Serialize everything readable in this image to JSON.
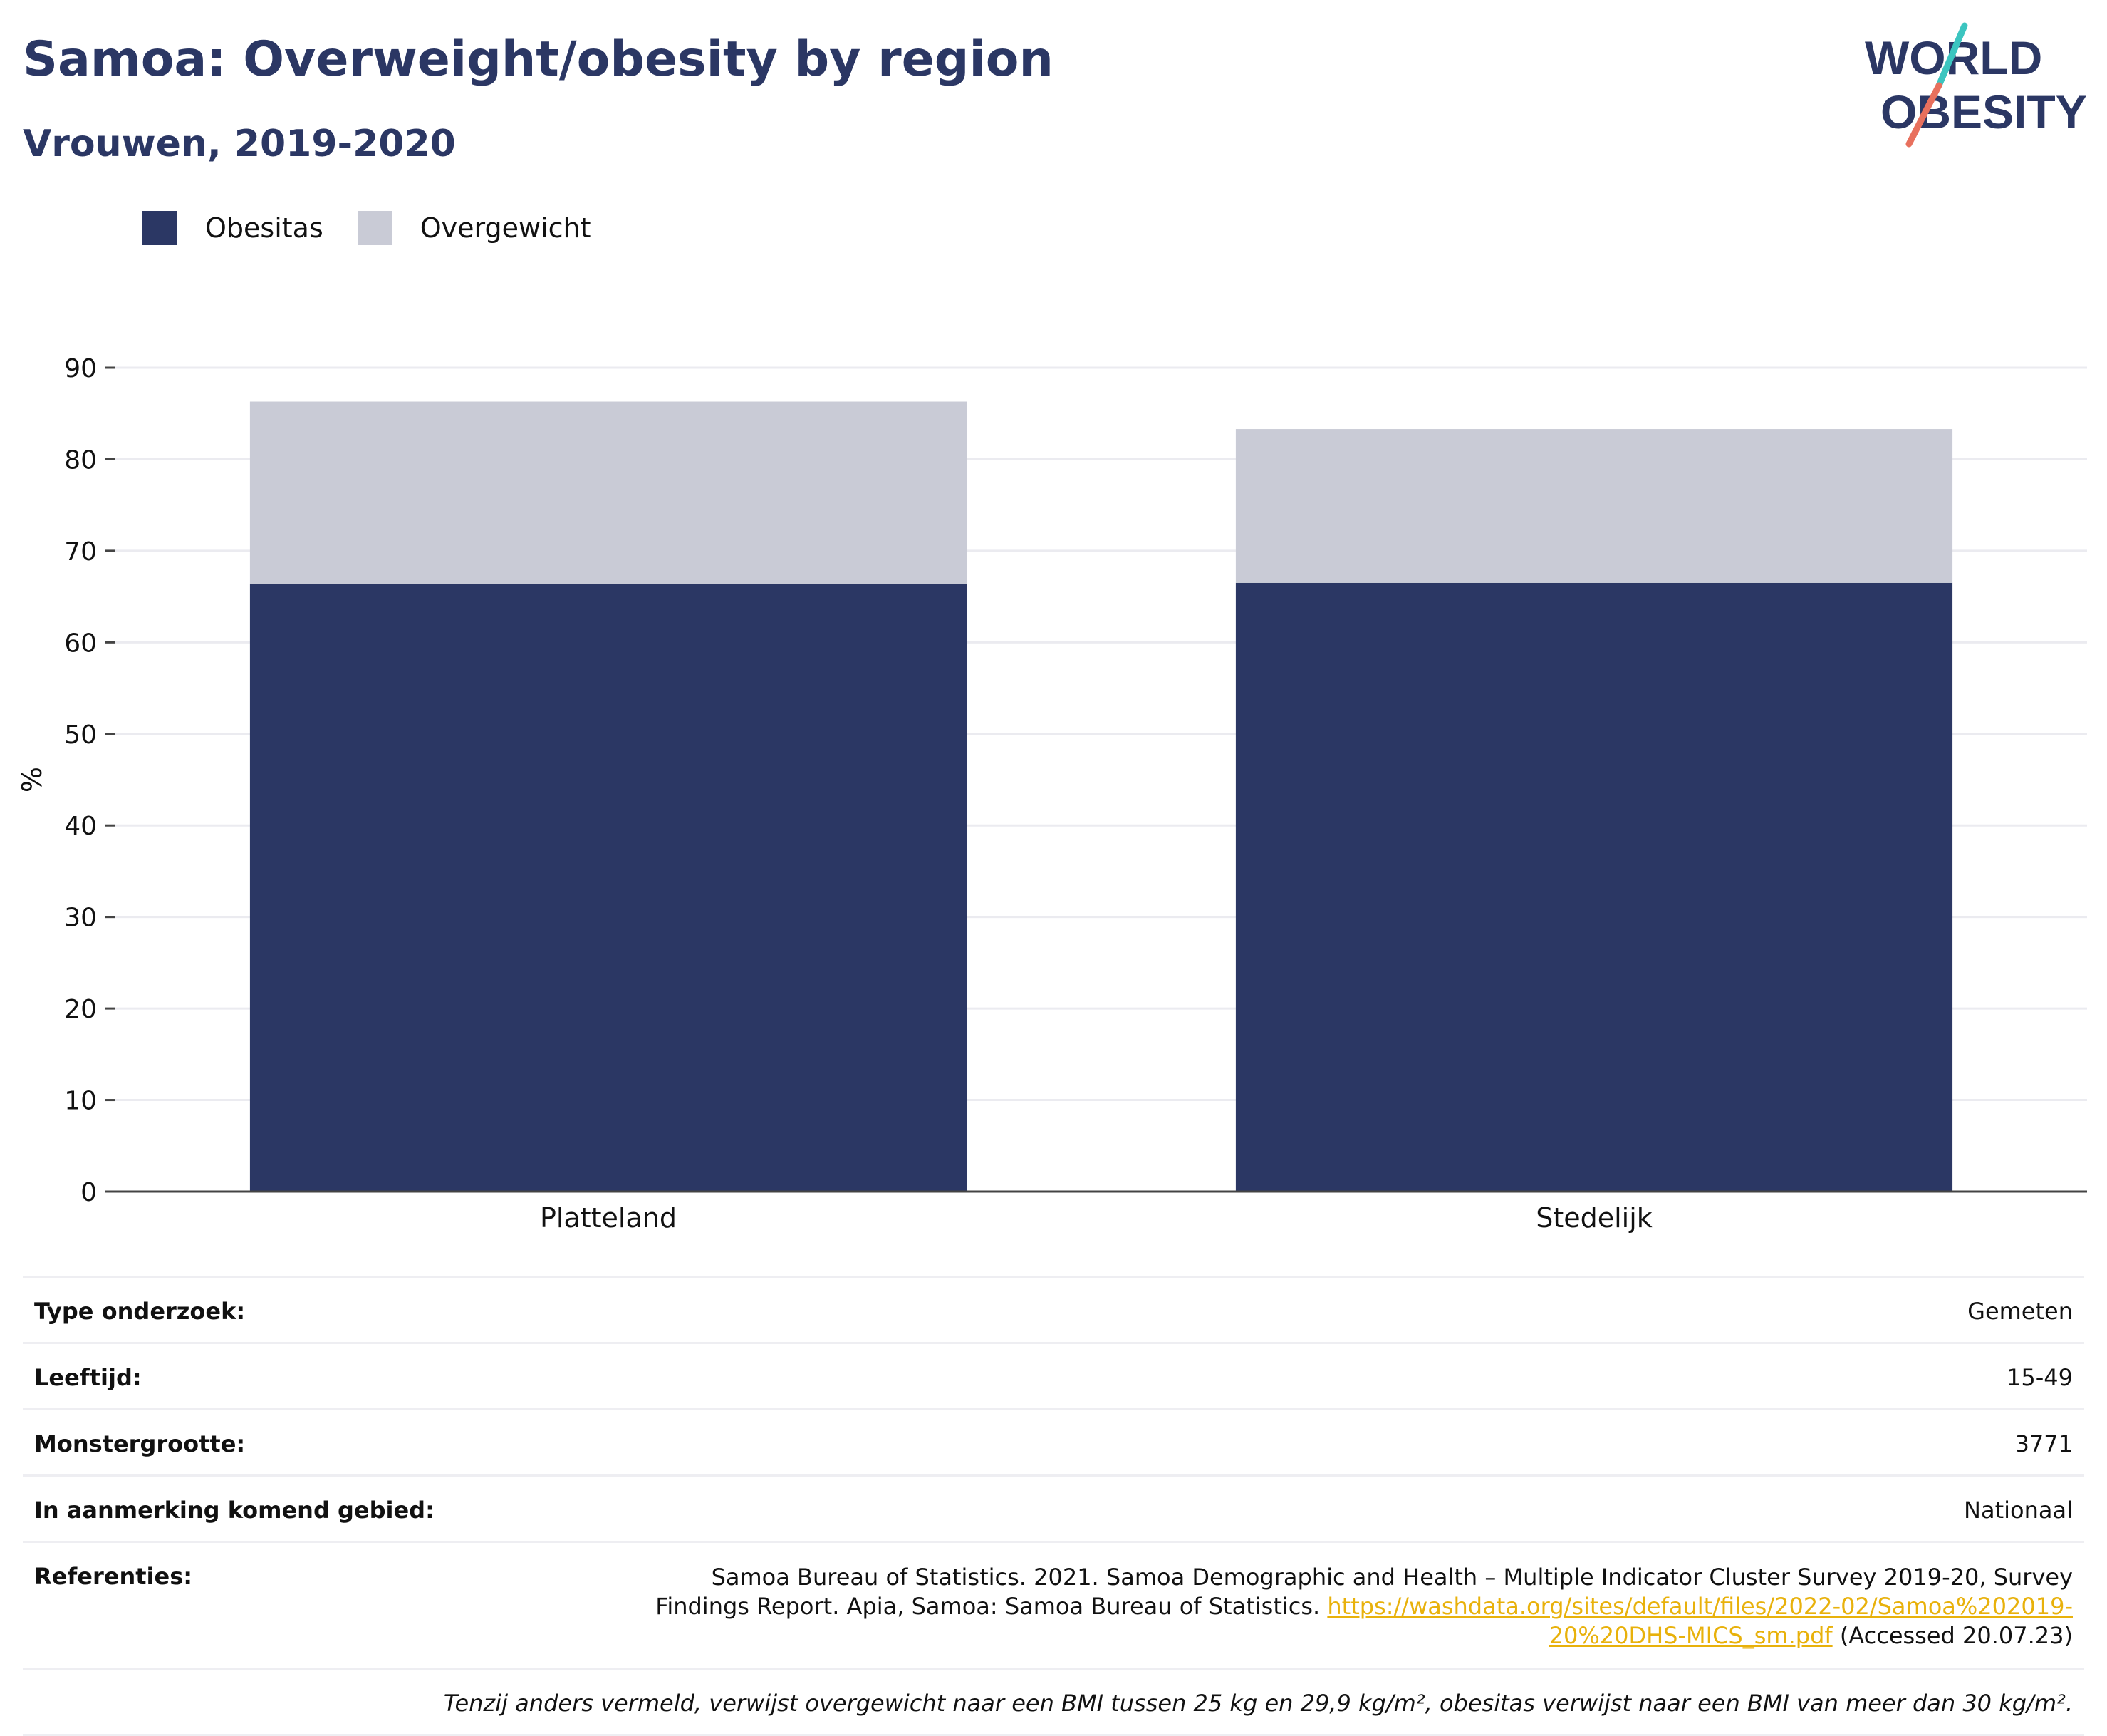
{
  "header": {
    "title": "Samoa: Overweight/obesity by region",
    "subtitle": "Vrouwen, 2019-2020",
    "logo_line1": "WORLD",
    "logo_line2": "OBESITY"
  },
  "colors": {
    "obesitas": "#2b3764",
    "overgewicht": "#c9cbd6",
    "title": "#2b3764",
    "link": "#e8b10b",
    "logo_teal": "#3cc5c0",
    "logo_coral": "#e8705d"
  },
  "chart_data": {
    "type": "bar",
    "stacked": true,
    "categories": [
      "Platteland",
      "Stedelijk"
    ],
    "series": [
      {
        "name": "Obesitas",
        "values": [
          66.4,
          66.5
        ]
      },
      {
        "name": "Overgewicht",
        "values": [
          19.9,
          16.8
        ]
      }
    ],
    "ylabel": "%",
    "ylim": [
      0,
      90
    ],
    "yticks": [
      "0",
      "10",
      "20",
      "30",
      "40",
      "50",
      "60",
      "70",
      "80",
      "90"
    ],
    "grid": true,
    "legend_position": "top-left"
  },
  "info": {
    "rows": [
      {
        "label": "Type onderzoek:",
        "value": "Gemeten"
      },
      {
        "label": "Leeftijd:",
        "value": "15-49"
      },
      {
        "label": "Monstergrootte:",
        "value": "3771"
      },
      {
        "label": "In aanmerking komend gebied:",
        "value": "Nationaal"
      }
    ],
    "references": {
      "label": "Referenties:",
      "text": "Samoa Bureau of Statistics. 2021. Samoa Demographic and Health – Multiple Indicator Cluster Survey 2019-20, Survey Findings Report. Apia, Samoa: Samoa Bureau of Statistics. ",
      "link": "https://washdata.org/sites/default/files/2022-02/Samoa%202019-20%20DHS-MICS_sm.pdf",
      "accessed": " (Accessed 20.07.23)"
    },
    "footnote": "Tenzij anders vermeld, verwijst overgewicht naar een BMI tussen 25 kg en 29,9 kg/m², obesitas verwijst naar een BMI van meer dan 30 kg/m²."
  }
}
